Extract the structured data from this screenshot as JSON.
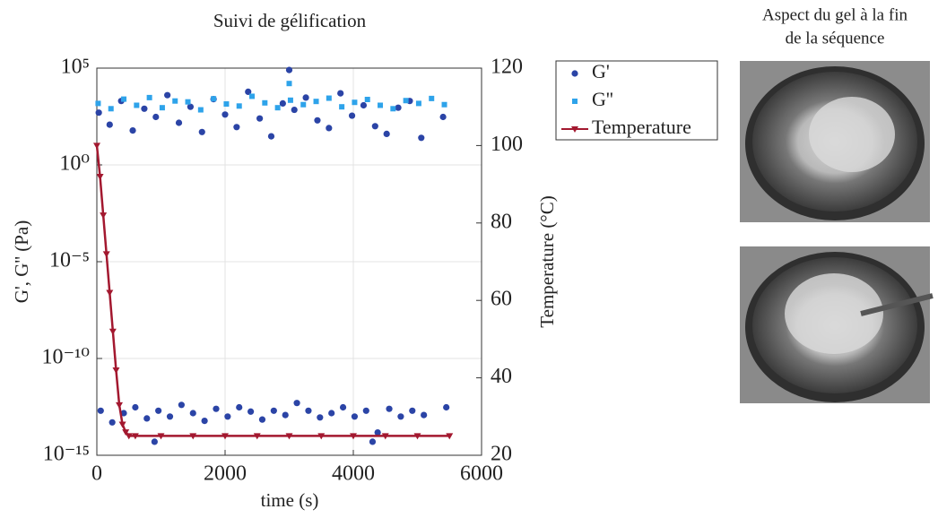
{
  "chart_data": {
    "type": "scatter",
    "title": "Suivi de gélification",
    "xlabel": "time (s)",
    "ylabel": "G', G'' (Pa)",
    "y2label": "Temperature (°C)",
    "annotations": [
      "Aspect du gel à la fin",
      "de la séquence"
    ],
    "xlim": [
      0,
      6000
    ],
    "xticks": [
      0,
      2000,
      4000,
      6000
    ],
    "ylim": [
      1e-15,
      100000.0
    ],
    "yscale": "log",
    "yticks": [
      {
        "value": 1e-15,
        "label": "10⁻¹⁵"
      },
      {
        "value": 1e-10,
        "label": "10⁻¹⁰"
      },
      {
        "value": 1e-05,
        "label": "10⁻⁵"
      },
      {
        "value": 1,
        "label": "10⁰"
      },
      {
        "value": 100000.0,
        "label": "10⁵"
      }
    ],
    "y2lim": [
      20,
      120
    ],
    "y2ticks": [
      20,
      40,
      60,
      80,
      100,
      120
    ],
    "grid": true,
    "legend": "outside-right",
    "series": [
      {
        "name": "G'",
        "color": "#2b44a6",
        "marker": "circle",
        "x": [
          30,
          200,
          380,
          560,
          740,
          920,
          1100,
          1280,
          1460,
          1640,
          1820,
          2000,
          2180,
          2360,
          2540,
          2720,
          2900,
          3080,
          3260,
          3440,
          3620,
          3800,
          3980,
          4160,
          4340,
          4520,
          4700,
          4880,
          5060,
          5400,
          3000,
          60,
          240,
          420,
          600,
          780,
          960,
          1140,
          1320,
          1500,
          1680,
          1860,
          2040,
          2220,
          2400,
          2580,
          2760,
          2940,
          3120,
          3300,
          3480,
          3660,
          3840,
          4020,
          4200,
          4380,
          4560,
          4740,
          4920,
          5100,
          5450,
          900,
          4300
        ],
        "values": [
          500,
          120,
          2000,
          60,
          800,
          300,
          4000,
          150,
          1000,
          50,
          2500,
          400,
          90,
          6000,
          250,
          30,
          1500,
          700,
          3000,
          200,
          80,
          5000,
          350,
          1200,
          100,
          40,
          900,
          2000,
          25,
          300,
          80000,
          2e-13,
          5e-14,
          1.5e-13,
          3e-13,
          8e-14,
          2e-13,
          1e-13,
          4e-13,
          1.5e-13,
          6e-14,
          2.5e-13,
          1e-13,
          3e-13,
          1.8e-13,
          7e-14,
          2e-13,
          1.2e-13,
          5e-13,
          2e-13,
          9e-14,
          1.5e-13,
          3e-13,
          1e-13,
          2e-13,
          1.5e-14,
          2.5e-13,
          1e-13,
          2e-13,
          1.2e-13,
          3e-13,
          5e-15,
          5e-15
        ]
      },
      {
        "name": "G''",
        "color": "#2ea3ea",
        "marker": "square",
        "x": [
          20,
          220,
          420,
          620,
          820,
          1020,
          1220,
          1420,
          1620,
          1820,
          2020,
          2220,
          2420,
          2620,
          2820,
          3020,
          3220,
          3420,
          3620,
          3820,
          4020,
          4220,
          4420,
          4620,
          4820,
          5020,
          5220,
          5420,
          3000
        ],
        "values": [
          1500,
          800,
          2500,
          1200,
          3000,
          900,
          2000,
          1800,
          700,
          2600,
          1400,
          1100,
          3500,
          1600,
          900,
          2200,
          1300,
          1900,
          2800,
          1000,
          1700,
          2400,
          1200,
          800,
          2100,
          1500,
          2700,
          1300,
          16000
        ]
      },
      {
        "name": "Temperature",
        "color": "#a3182f",
        "marker": "triangle-down",
        "axis": "y2",
        "line": true,
        "x": [
          0,
          50,
          100,
          150,
          200,
          250,
          300,
          350,
          400,
          450,
          500,
          600,
          1000,
          1500,
          2000,
          2500,
          3000,
          3500,
          4000,
          4500,
          5000,
          5500
        ],
        "values": [
          100,
          92,
          82,
          72,
          62,
          52,
          42,
          33,
          28,
          26,
          25,
          25,
          25,
          25,
          25,
          25,
          25,
          25,
          25,
          25,
          25,
          25
        ]
      }
    ]
  }
}
